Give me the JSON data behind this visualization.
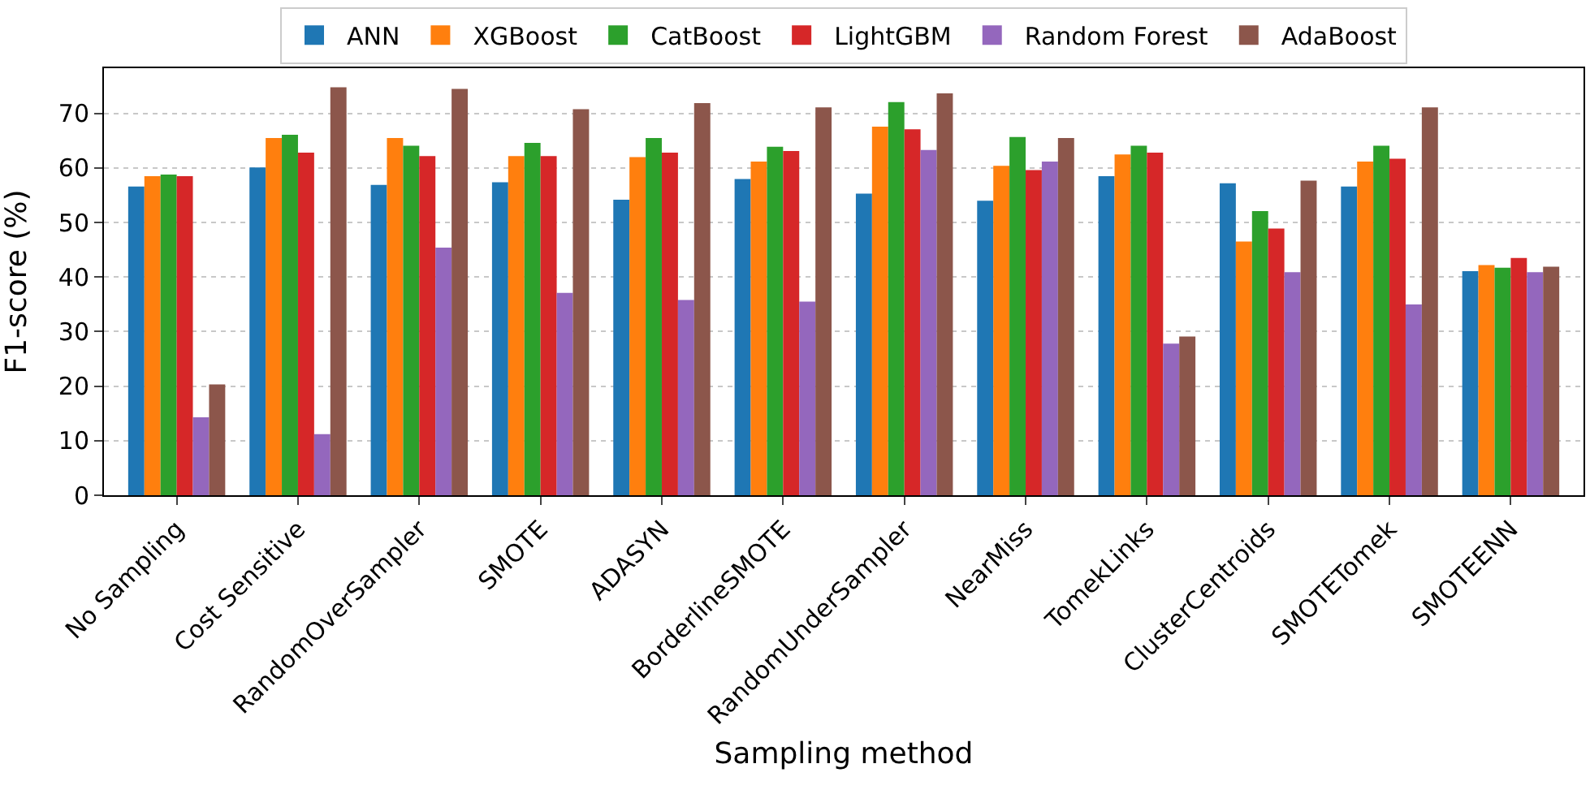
{
  "chart_data": {
    "type": "bar",
    "xlabel": "Sampling method",
    "ylabel": "F1-score (%)",
    "categories": [
      "No Sampling",
      "Cost Sensitive",
      "RandomOverSampler",
      "SMOTE",
      "ADASYN",
      "BorderlineSMOTE",
      "RandomUnderSampler",
      "NearMiss",
      "TomekLinks",
      "ClusterCentroids",
      "SMOTETomek",
      "SMOTEENN"
    ],
    "series": [
      {
        "name": "ANN",
        "color": "#1f77b4",
        "values": [
          56.6,
          60.1,
          56.9,
          57.4,
          54.2,
          58.0,
          55.3,
          54.0,
          58.5,
          57.2,
          56.6,
          41.1
        ]
      },
      {
        "name": "XGBoost",
        "color": "#ff7f0e",
        "values": [
          58.5,
          65.5,
          65.5,
          62.2,
          62.0,
          61.2,
          67.6,
          60.4,
          62.5,
          46.5,
          61.2,
          42.2
        ]
      },
      {
        "name": "CatBoost",
        "color": "#2ca02c",
        "values": [
          58.8,
          66.1,
          64.1,
          64.6,
          65.5,
          63.9,
          72.1,
          65.7,
          64.1,
          52.1,
          64.1,
          41.7
        ]
      },
      {
        "name": "LightGBM",
        "color": "#d62728",
        "values": [
          58.5,
          62.8,
          62.2,
          62.2,
          62.8,
          63.1,
          67.1,
          59.6,
          62.8,
          48.9,
          61.7,
          43.5
        ]
      },
      {
        "name": "Random Forest",
        "color": "#9467bd",
        "values": [
          14.3,
          11.2,
          45.4,
          37.1,
          35.8,
          35.5,
          63.3,
          61.2,
          27.8,
          40.9,
          35.0,
          40.9
        ]
      },
      {
        "name": "AdaBoost",
        "color": "#8c564b",
        "values": [
          20.3,
          74.8,
          74.5,
          70.8,
          71.9,
          71.1,
          73.7,
          65.5,
          29.1,
          57.7,
          71.1,
          41.9
        ]
      }
    ],
    "ylim": [
      0,
      78.3
    ],
    "yticks": [
      0,
      10,
      20,
      30,
      40,
      50,
      60,
      70
    ],
    "grid": "y",
    "legend": "top"
  }
}
